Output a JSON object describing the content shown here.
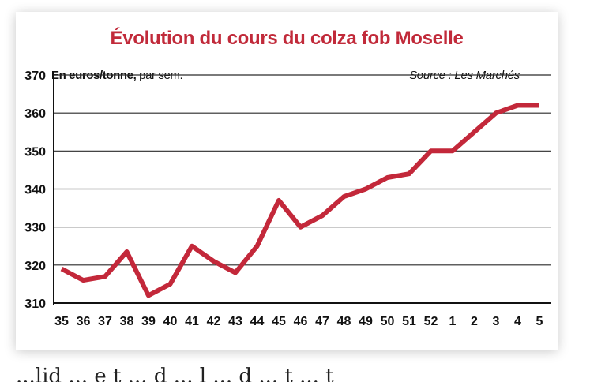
{
  "chart_data": {
    "type": "line",
    "title": "Évolution du cours du colza fob Moselle",
    "unit_label": "En euros/tonne,",
    "unit_suffix": "par sem.",
    "source": "Source : Les Marchés",
    "categories": [
      "35",
      "36",
      "37",
      "38",
      "39",
      "40",
      "41",
      "42",
      "43",
      "44",
      "45",
      "46",
      "47",
      "48",
      "49",
      "50",
      "51",
      "52",
      "1",
      "2",
      "3",
      "4",
      "5"
    ],
    "series": [
      {
        "values": [
          319,
          316,
          317,
          323.5,
          312,
          315,
          325,
          321,
          318,
          325,
          337,
          330,
          333,
          338,
          340,
          343,
          344,
          350,
          350,
          355,
          360,
          362,
          362
        ]
      }
    ],
    "ylim": [
      310,
      370
    ],
    "yticks": [
      310,
      320,
      330,
      340,
      350,
      360,
      370
    ],
    "grid": true,
    "line_color": "#c3283a"
  },
  "page": {
    "below_text": "...lid ... e t ... d ... l ... d ... t ... t"
  }
}
